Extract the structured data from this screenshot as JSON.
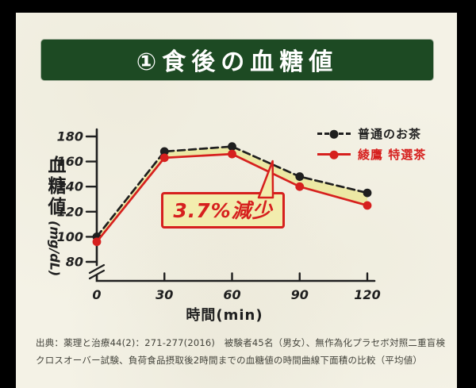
{
  "frame": {
    "outer_bg": "#000000",
    "paper_color": "#f4f2e6"
  },
  "title": {
    "text": "①食後の血糖値",
    "bg_color": "#1d4a23",
    "text_color": "#ffffff"
  },
  "legend": [
    {
      "label": "普通のお茶",
      "color": "#1f1f1f",
      "style": "dashed"
    },
    {
      "label": "綾鷹 特選茶",
      "color": "#d6201e",
      "style": "solid"
    }
  ],
  "axis": {
    "y_label": "血糖値",
    "y_unit": "(mg/dL)",
    "x_label": "時間(min)"
  },
  "annotation": {
    "text": "3.7%減少"
  },
  "footer": {
    "line1": "出典：薬理と治療44(2)：271-277(2016)　被験者45名（男女）、無作為化プラセボ対照二重盲検",
    "line2": "クロスオーバー試験、負荷食品摂取後2時間までの血糖値の時間曲線下面積の比較（平均値）"
  },
  "chart_data": {
    "type": "line",
    "title": "食後の血糖値",
    "x": [
      0,
      30,
      60,
      90,
      120
    ],
    "xticks": [
      0,
      30,
      60,
      90,
      120
    ],
    "yticks": [
      80,
      100,
      120,
      140,
      160,
      180
    ],
    "ylim": [
      80,
      180
    ],
    "xlabel": "時間(min)",
    "ylabel": "血糖値(mg/dL)",
    "axis_break": true,
    "grid": false,
    "legend_position": "top-right",
    "band_fill": "#ece8a4",
    "annotation": {
      "text": "3.7%減少",
      "points_to_x": 78
    },
    "series": [
      {
        "name": "普通のお茶",
        "color": "#1f1f1f",
        "dash": true,
        "values": [
          100,
          168,
          172,
          148,
          135
        ]
      },
      {
        "name": "綾鷹 特選茶",
        "color": "#d6201e",
        "dash": false,
        "values": [
          96,
          163,
          166,
          140,
          125
        ]
      }
    ],
    "ink_color": "#1f1f1f"
  }
}
